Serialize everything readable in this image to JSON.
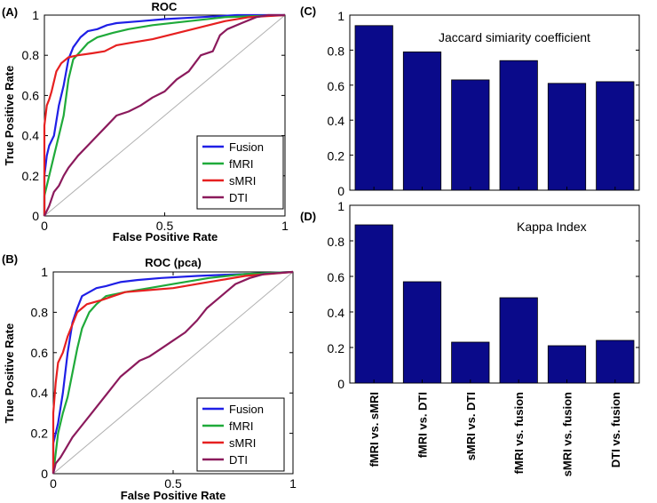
{
  "chart_data": [
    {
      "id": "A",
      "type": "line",
      "panel_label": "(A)",
      "title": "ROC",
      "xlabel": "False Positive Rate",
      "ylabel": "True Positive Rate",
      "xlim": [
        0,
        1
      ],
      "ylim": [
        0,
        1
      ],
      "xticks": [
        "0",
        "0.5",
        "1"
      ],
      "yticks": [
        "0",
        "0.2",
        "0.4",
        "0.6",
        "0.8",
        "1"
      ],
      "legend_position": "bottom-right",
      "chance_line": true,
      "series": [
        {
          "name": "Fusion",
          "color": "#1f1fe6",
          "points": [
            [
              0,
              0
            ],
            [
              0.0,
              0.2
            ],
            [
              0.01,
              0.3
            ],
            [
              0.02,
              0.35
            ],
            [
              0.04,
              0.4
            ],
            [
              0.06,
              0.55
            ],
            [
              0.08,
              0.65
            ],
            [
              0.1,
              0.78
            ],
            [
              0.12,
              0.84
            ],
            [
              0.15,
              0.89
            ],
            [
              0.18,
              0.92
            ],
            [
              0.22,
              0.93
            ],
            [
              0.26,
              0.95
            ],
            [
              0.3,
              0.96
            ],
            [
              0.4,
              0.97
            ],
            [
              0.5,
              0.98
            ],
            [
              0.65,
              0.99
            ],
            [
              0.8,
              1.0
            ],
            [
              1,
              1
            ]
          ]
        },
        {
          "name": "fMRI",
          "color": "#1faa3a",
          "points": [
            [
              0,
              0
            ],
            [
              0.0,
              0.1
            ],
            [
              0.02,
              0.2
            ],
            [
              0.04,
              0.3
            ],
            [
              0.06,
              0.4
            ],
            [
              0.08,
              0.5
            ],
            [
              0.1,
              0.68
            ],
            [
              0.12,
              0.78
            ],
            [
              0.15,
              0.82
            ],
            [
              0.18,
              0.86
            ],
            [
              0.22,
              0.89
            ],
            [
              0.28,
              0.91
            ],
            [
              0.35,
              0.93
            ],
            [
              0.45,
              0.95
            ],
            [
              0.6,
              0.97
            ],
            [
              0.75,
              0.99
            ],
            [
              1,
              1
            ]
          ]
        },
        {
          "name": "sMRI",
          "color": "#e62020",
          "points": [
            [
              0,
              0
            ],
            [
              0.0,
              0.45
            ],
            [
              0.01,
              0.55
            ],
            [
              0.02,
              0.58
            ],
            [
              0.03,
              0.62
            ],
            [
              0.05,
              0.72
            ],
            [
              0.07,
              0.76
            ],
            [
              0.1,
              0.79
            ],
            [
              0.14,
              0.8
            ],
            [
              0.2,
              0.81
            ],
            [
              0.25,
              0.82
            ],
            [
              0.3,
              0.85
            ],
            [
              0.35,
              0.86
            ],
            [
              0.45,
              0.88
            ],
            [
              0.55,
              0.91
            ],
            [
              0.65,
              0.94
            ],
            [
              0.75,
              0.97
            ],
            [
              0.85,
              0.99
            ],
            [
              1,
              1
            ]
          ]
        },
        {
          "name": "DTI",
          "color": "#8b1a5c",
          "points": [
            [
              0,
              0
            ],
            [
              0.02,
              0.05
            ],
            [
              0.04,
              0.12
            ],
            [
              0.06,
              0.15
            ],
            [
              0.08,
              0.2
            ],
            [
              0.1,
              0.24
            ],
            [
              0.14,
              0.3
            ],
            [
              0.18,
              0.35
            ],
            [
              0.22,
              0.4
            ],
            [
              0.26,
              0.45
            ],
            [
              0.3,
              0.5
            ],
            [
              0.35,
              0.52
            ],
            [
              0.4,
              0.55
            ],
            [
              0.45,
              0.59
            ],
            [
              0.5,
              0.62
            ],
            [
              0.55,
              0.68
            ],
            [
              0.6,
              0.72
            ],
            [
              0.65,
              0.8
            ],
            [
              0.7,
              0.82
            ],
            [
              0.73,
              0.9
            ],
            [
              0.76,
              0.93
            ],
            [
              0.82,
              0.96
            ],
            [
              0.88,
              0.99
            ],
            [
              0.93,
              1.0
            ],
            [
              1,
              1
            ]
          ]
        }
      ]
    },
    {
      "id": "B",
      "type": "line",
      "panel_label": "(B)",
      "title": "ROC (pca)",
      "xlabel": "False Positive Rate",
      "ylabel": "True Positive Rate",
      "xlim": [
        0,
        1
      ],
      "ylim": [
        0,
        1
      ],
      "xticks": [
        "0",
        "0.5",
        "1"
      ],
      "yticks": [
        "0",
        "0.2",
        "0.4",
        "0.6",
        "0.8",
        "1"
      ],
      "legend_position": "bottom-right",
      "chance_line": true,
      "series": [
        {
          "name": "Fusion",
          "color": "#1f1fe6",
          "points": [
            [
              0,
              0
            ],
            [
              0.0,
              0.15
            ],
            [
              0.02,
              0.25
            ],
            [
              0.04,
              0.4
            ],
            [
              0.06,
              0.6
            ],
            [
              0.08,
              0.75
            ],
            [
              0.1,
              0.82
            ],
            [
              0.12,
              0.88
            ],
            [
              0.15,
              0.9
            ],
            [
              0.18,
              0.92
            ],
            [
              0.22,
              0.93
            ],
            [
              0.28,
              0.95
            ],
            [
              0.35,
              0.96
            ],
            [
              0.45,
              0.97
            ],
            [
              0.6,
              0.98
            ],
            [
              0.8,
              0.99
            ],
            [
              1,
              1
            ]
          ]
        },
        {
          "name": "fMRI",
          "color": "#1faa3a",
          "points": [
            [
              0,
              0
            ],
            [
              0.01,
              0.1
            ],
            [
              0.02,
              0.2
            ],
            [
              0.04,
              0.3
            ],
            [
              0.06,
              0.38
            ],
            [
              0.08,
              0.5
            ],
            [
              0.1,
              0.62
            ],
            [
              0.12,
              0.72
            ],
            [
              0.15,
              0.8
            ],
            [
              0.18,
              0.84
            ],
            [
              0.22,
              0.88
            ],
            [
              0.3,
              0.9
            ],
            [
              0.4,
              0.92
            ],
            [
              0.5,
              0.94
            ],
            [
              0.65,
              0.97
            ],
            [
              0.8,
              0.99
            ],
            [
              1,
              1
            ]
          ]
        },
        {
          "name": "sMRI",
          "color": "#e62020",
          "points": [
            [
              0,
              0
            ],
            [
              0.0,
              0.3
            ],
            [
              0.01,
              0.45
            ],
            [
              0.02,
              0.55
            ],
            [
              0.04,
              0.6
            ],
            [
              0.06,
              0.68
            ],
            [
              0.08,
              0.74
            ],
            [
              0.1,
              0.8
            ],
            [
              0.14,
              0.84
            ],
            [
              0.2,
              0.86
            ],
            [
              0.25,
              0.88
            ],
            [
              0.3,
              0.9
            ],
            [
              0.4,
              0.91
            ],
            [
              0.5,
              0.92
            ],
            [
              0.6,
              0.94
            ],
            [
              0.7,
              0.96
            ],
            [
              0.8,
              0.98
            ],
            [
              1,
              1
            ]
          ]
        },
        {
          "name": "DTI",
          "color": "#8b1a5c",
          "points": [
            [
              0,
              0
            ],
            [
              0.01,
              0.05
            ],
            [
              0.03,
              0.08
            ],
            [
              0.05,
              0.12
            ],
            [
              0.08,
              0.18
            ],
            [
              0.12,
              0.24
            ],
            [
              0.16,
              0.3
            ],
            [
              0.2,
              0.36
            ],
            [
              0.24,
              0.42
            ],
            [
              0.28,
              0.48
            ],
            [
              0.32,
              0.52
            ],
            [
              0.36,
              0.56
            ],
            [
              0.4,
              0.58
            ],
            [
              0.45,
              0.62
            ],
            [
              0.5,
              0.66
            ],
            [
              0.55,
              0.7
            ],
            [
              0.6,
              0.76
            ],
            [
              0.64,
              0.82
            ],
            [
              0.68,
              0.86
            ],
            [
              0.72,
              0.9
            ],
            [
              0.76,
              0.94
            ],
            [
              0.82,
              0.97
            ],
            [
              0.88,
              0.99
            ],
            [
              1,
              1
            ]
          ]
        }
      ]
    },
    {
      "id": "C",
      "type": "bar",
      "panel_label": "(C)",
      "annotation": "Jaccard simiarity coefficient",
      "categories": [
        "fMRI vs. sMRI",
        "fMRI vs. DTI",
        "sMRI vs. DTI",
        "fMRI vs. fusion",
        "sMRI vs. fusion",
        "DTI vs. fusion"
      ],
      "values": [
        0.94,
        0.79,
        0.63,
        0.74,
        0.61,
        0.62
      ],
      "ylim": [
        0,
        1
      ],
      "yticks": [
        "0",
        "0.2",
        "0.4",
        "0.6",
        "0.8",
        "1"
      ],
      "color": "#0a0a8a"
    },
    {
      "id": "D",
      "type": "bar",
      "panel_label": "(D)",
      "annotation": "Kappa Index",
      "categories": [
        "fMRI vs. sMRI",
        "fMRI vs. DTI",
        "sMRI vs. DTI",
        "fMRI vs. fusion",
        "sMRI vs. fusion",
        "DTI vs. fusion"
      ],
      "category_labels": [
        "fMRI vs. sMRI",
        "fMRI vs. DTI",
        "sMRI vs. DTI",
        "fMRI vs. fusion",
        "sMRI vs. fusion",
        "DTI vs. fusion"
      ],
      "values": [
        0.89,
        0.57,
        0.23,
        0.48,
        0.21,
        0.24
      ],
      "ylim": [
        0,
        1
      ],
      "yticks": [
        "0",
        "0.2",
        "0.4",
        "0.6",
        "0.8",
        "1"
      ],
      "color": "#0a0a8a"
    }
  ]
}
